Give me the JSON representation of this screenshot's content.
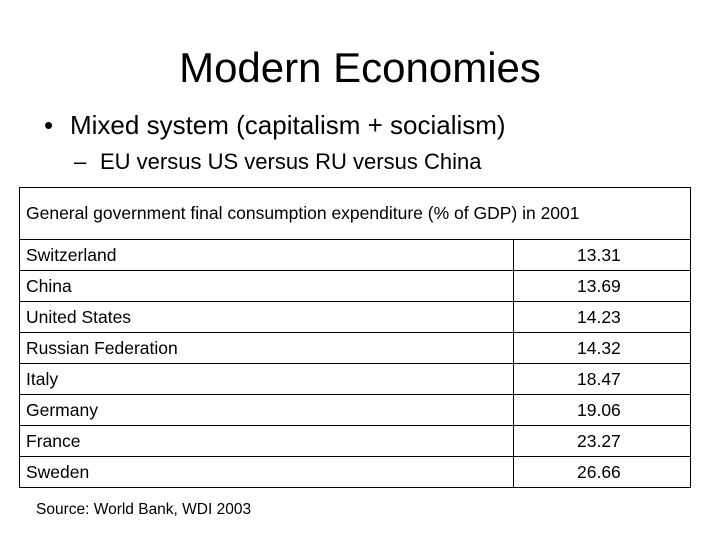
{
  "slide": {
    "title": "Modern Economies",
    "bullets": [
      {
        "marker": "•",
        "text": "Mixed system (capitalism + socialism)"
      }
    ],
    "sub_bullets": [
      {
        "marker": "–",
        "text": "EU versus US versus RU versus China"
      }
    ]
  },
  "table": {
    "header": "General government final consumption expenditure (% of GDP) in 2001",
    "rows": [
      {
        "country": "Switzerland",
        "value": "13.31"
      },
      {
        "country": "China",
        "value": "13.69"
      },
      {
        "country": "United States",
        "value": "14.23"
      },
      {
        "country": "Russian Federation",
        "value": "14.32"
      },
      {
        "country": "Italy",
        "value": "18.47"
      },
      {
        "country": "Germany",
        "value": "19.06"
      },
      {
        "country": "France",
        "value": "23.27"
      },
      {
        "country": "Sweden",
        "value": "26.66"
      }
    ]
  },
  "source": "Source: World Bank, WDI 2003"
}
